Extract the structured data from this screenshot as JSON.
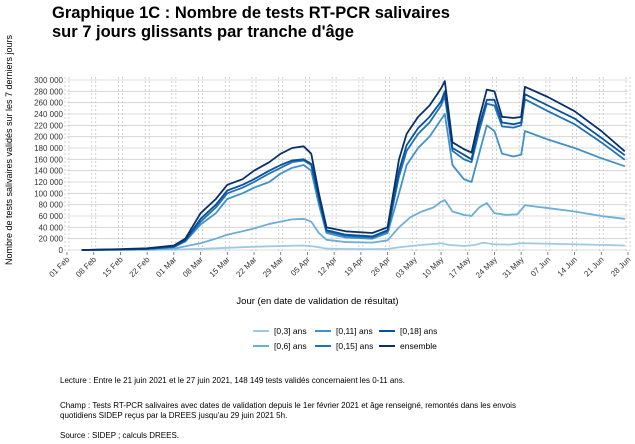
{
  "title_lines": [
    "Graphique 1C : Nombre de tests RT-PCR salivaires",
    "sur 7 jours glissants par tranche d'âge"
  ],
  "notes": {
    "lecture": "Lecture : Entre le 21 juin 2021 et le 27 juin 2021, 148 149 tests validés concernaient les 0-11 ans.",
    "champ_lines": [
      "Champ : Tests RT-PCR salivaires avec dates de validation depuis le 1er février 2021 et âge renseigné, remontés dans les envois",
      "quotidiens SIDEP reçus par la DREES jusqu'au 29 juin 2021 5h."
    ],
    "source": "Source : SIDEP ; calculs DREES."
  },
  "chart_data": {
    "type": "line",
    "title": "Graphique 1C : Nombre de tests RT-PCR salivaires sur 7 jours glissants par tranche d'âge",
    "xlabel": "Jour (en date de validation de résultat)",
    "ylabel": "Nombre de tests salivaires validés sur les 7 derniers jours",
    "x_range": [
      "2021-02-01",
      "2021-06-28"
    ],
    "ylim": [
      0,
      300000
    ],
    "y_ticks": [
      0,
      20000,
      40000,
      60000,
      80000,
      100000,
      120000,
      140000,
      160000,
      180000,
      200000,
      220000,
      240000,
      260000,
      280000,
      300000
    ],
    "y_tick_labels": [
      "0",
      "20 000",
      "40 000",
      "60 000",
      "80 000",
      "100 000",
      "120 000",
      "140 000",
      "160 000",
      "180 000",
      "200 000",
      "220 000",
      "240 000",
      "260 000",
      "280 000",
      "300 000"
    ],
    "x_tick_dates": [
      "2021-02-01",
      "2021-02-08",
      "2021-02-15",
      "2021-02-22",
      "2021-03-01",
      "2021-03-08",
      "2021-03-15",
      "2021-03-22",
      "2021-03-29",
      "2021-04-05",
      "2021-04-12",
      "2021-04-19",
      "2021-04-26",
      "2021-05-03",
      "2021-05-10",
      "2021-05-17",
      "2021-05-24",
      "2021-05-31",
      "2021-06-07",
      "2021-06-14",
      "2021-06-21",
      "2021-06-28"
    ],
    "x_tick_labels": [
      "01 Feb",
      "08 Feb",
      "15 Feb",
      "22 Feb",
      "01 Mar",
      "08 Mar",
      "15 Mar",
      "22 Mar",
      "29 Mar",
      "05 Apr",
      "12 Apr",
      "19 Apr",
      "26 Apr",
      "03 May",
      "10 May",
      "17 May",
      "24 May",
      "31 May",
      "07 Jun",
      "14 Jun",
      "21 Jun",
      "28 Jun"
    ],
    "vertical_dashed_lines": [
      "2021-02-01",
      "2021-02-08",
      "2021-02-15",
      "2021-02-22",
      "2021-03-01",
      "2021-03-08",
      "2021-03-15",
      "2021-03-22",
      "2021-03-29",
      "2021-04-05",
      "2021-04-12",
      "2021-04-19",
      "2021-04-26",
      "2021-05-03",
      "2021-05-10",
      "2021-05-17",
      "2021-05-24",
      "2021-05-31",
      "2021-06-07",
      "2021-06-14",
      "2021-06-21",
      "2021-06-28"
    ],
    "grid": "horizontal",
    "legend_position": "bottom",
    "series": [
      {
        "name": "[0,3] ans",
        "color": "#9ecae1",
        "points": [
          [
            "2021-02-05",
            0
          ],
          [
            "2021-02-15",
            200
          ],
          [
            "2021-02-22",
            300
          ],
          [
            "2021-03-01",
            800
          ],
          [
            "2021-03-05",
            1500
          ],
          [
            "2021-03-12",
            3000
          ],
          [
            "2021-03-19",
            5000
          ],
          [
            "2021-03-26",
            6500
          ],
          [
            "2021-04-01",
            7500
          ],
          [
            "2021-04-04",
            8000
          ],
          [
            "2021-04-07",
            6000
          ],
          [
            "2021-04-10",
            2500
          ],
          [
            "2021-04-15",
            1800
          ],
          [
            "2021-04-22",
            1500
          ],
          [
            "2021-04-26",
            2000
          ],
          [
            "2021-04-30",
            5500
          ],
          [
            "2021-05-05",
            9000
          ],
          [
            "2021-05-09",
            11000
          ],
          [
            "2021-05-10",
            12000
          ],
          [
            "2021-05-12",
            9000
          ],
          [
            "2021-05-16",
            7000
          ],
          [
            "2021-05-19",
            9000
          ],
          [
            "2021-05-21",
            13000
          ],
          [
            "2021-05-24",
            10000
          ],
          [
            "2021-05-28",
            9500
          ],
          [
            "2021-05-31",
            12000
          ],
          [
            "2021-06-07",
            11000
          ],
          [
            "2021-06-14",
            10000
          ],
          [
            "2021-06-21",
            9000
          ],
          [
            "2021-06-27",
            8000
          ]
        ]
      },
      {
        "name": "[0,6] ans",
        "color": "#6baed6",
        "points": [
          [
            "2021-02-05",
            0
          ],
          [
            "2021-02-15",
            300
          ],
          [
            "2021-02-22",
            800
          ],
          [
            "2021-03-01",
            2500
          ],
          [
            "2021-03-05",
            8000
          ],
          [
            "2021-03-08",
            12000
          ],
          [
            "2021-03-12",
            20000
          ],
          [
            "2021-03-15",
            27000
          ],
          [
            "2021-03-19",
            33000
          ],
          [
            "2021-03-22",
            38000
          ],
          [
            "2021-03-26",
            46000
          ],
          [
            "2021-03-29",
            50000
          ],
          [
            "2021-04-01",
            54000
          ],
          [
            "2021-04-04",
            55000
          ],
          [
            "2021-04-06",
            50000
          ],
          [
            "2021-04-08",
            30000
          ],
          [
            "2021-04-10",
            18000
          ],
          [
            "2021-04-15",
            14000
          ],
          [
            "2021-04-22",
            13000
          ],
          [
            "2021-04-26",
            17000
          ],
          [
            "2021-04-29",
            40000
          ],
          [
            "2021-05-02",
            58000
          ],
          [
            "2021-05-05",
            68000
          ],
          [
            "2021-05-08",
            75000
          ],
          [
            "2021-05-10",
            85000
          ],
          [
            "2021-05-11",
            88000
          ],
          [
            "2021-05-13",
            68000
          ],
          [
            "2021-05-16",
            62000
          ],
          [
            "2021-05-18",
            60000
          ],
          [
            "2021-05-20",
            75000
          ],
          [
            "2021-05-22",
            83000
          ],
          [
            "2021-05-24",
            65000
          ],
          [
            "2021-05-27",
            62000
          ],
          [
            "2021-05-30",
            63000
          ],
          [
            "2021-06-01",
            79000
          ],
          [
            "2021-06-07",
            74000
          ],
          [
            "2021-06-14",
            68000
          ],
          [
            "2021-06-21",
            60000
          ],
          [
            "2021-06-27",
            55000
          ]
        ]
      },
      {
        "name": "[0,11] ans",
        "color": "#4292c6",
        "points": [
          [
            "2021-02-05",
            0
          ],
          [
            "2021-02-15",
            1000
          ],
          [
            "2021-02-22",
            2000
          ],
          [
            "2021-03-01",
            5000
          ],
          [
            "2021-03-04",
            15000
          ],
          [
            "2021-03-08",
            45000
          ],
          [
            "2021-03-12",
            65000
          ],
          [
            "2021-03-15",
            90000
          ],
          [
            "2021-03-19",
            100000
          ],
          [
            "2021-03-22",
            110000
          ],
          [
            "2021-03-26",
            120000
          ],
          [
            "2021-03-29",
            135000
          ],
          [
            "2021-04-01",
            145000
          ],
          [
            "2021-04-04",
            150000
          ],
          [
            "2021-04-06",
            140000
          ],
          [
            "2021-04-08",
            80000
          ],
          [
            "2021-04-10",
            30000
          ],
          [
            "2021-04-15",
            22000
          ],
          [
            "2021-04-22",
            20000
          ],
          [
            "2021-04-26",
            30000
          ],
          [
            "2021-04-29",
            100000
          ],
          [
            "2021-05-01",
            150000
          ],
          [
            "2021-05-04",
            180000
          ],
          [
            "2021-05-07",
            200000
          ],
          [
            "2021-05-10",
            230000
          ],
          [
            "2021-05-11",
            240000
          ],
          [
            "2021-05-13",
            150000
          ],
          [
            "2021-05-16",
            125000
          ],
          [
            "2021-05-18",
            120000
          ],
          [
            "2021-05-20",
            170000
          ],
          [
            "2021-05-22",
            220000
          ],
          [
            "2021-05-24",
            210000
          ],
          [
            "2021-05-26",
            170000
          ],
          [
            "2021-05-29",
            165000
          ],
          [
            "2021-05-31",
            168000
          ],
          [
            "2021-06-01",
            210000
          ],
          [
            "2021-06-07",
            195000
          ],
          [
            "2021-06-14",
            180000
          ],
          [
            "2021-06-21",
            162000
          ],
          [
            "2021-06-27",
            148149
          ]
        ]
      },
      {
        "name": "[0,15] ans",
        "color": "#2171b5",
        "points": [
          [
            "2021-02-05",
            0
          ],
          [
            "2021-02-15",
            1000
          ],
          [
            "2021-02-22",
            2000
          ],
          [
            "2021-03-01",
            5500
          ],
          [
            "2021-03-04",
            16000
          ],
          [
            "2021-03-08",
            50000
          ],
          [
            "2021-03-12",
            75000
          ],
          [
            "2021-03-15",
            100000
          ],
          [
            "2021-03-19",
            110000
          ],
          [
            "2021-03-22",
            120000
          ],
          [
            "2021-03-26",
            135000
          ],
          [
            "2021-03-29",
            145000
          ],
          [
            "2021-04-01",
            155000
          ],
          [
            "2021-04-04",
            158000
          ],
          [
            "2021-04-06",
            150000
          ],
          [
            "2021-04-08",
            90000
          ],
          [
            "2021-04-10",
            33000
          ],
          [
            "2021-04-15",
            25000
          ],
          [
            "2021-04-22",
            22000
          ],
          [
            "2021-04-26",
            33000
          ],
          [
            "2021-04-29",
            130000
          ],
          [
            "2021-05-01",
            175000
          ],
          [
            "2021-05-04",
            205000
          ],
          [
            "2021-05-07",
            225000
          ],
          [
            "2021-05-10",
            255000
          ],
          [
            "2021-05-11",
            272000
          ],
          [
            "2021-05-13",
            175000
          ],
          [
            "2021-05-16",
            160000
          ],
          [
            "2021-05-18",
            155000
          ],
          [
            "2021-05-20",
            210000
          ],
          [
            "2021-05-22",
            258000
          ],
          [
            "2021-05-24",
            255000
          ],
          [
            "2021-05-26",
            218000
          ],
          [
            "2021-05-29",
            216000
          ],
          [
            "2021-05-31",
            220000
          ],
          [
            "2021-06-01",
            266000
          ],
          [
            "2021-06-07",
            245000
          ],
          [
            "2021-06-14",
            222000
          ],
          [
            "2021-06-21",
            190000
          ],
          [
            "2021-06-27",
            160000
          ]
        ]
      },
      {
        "name": "[0,18] ans",
        "color": "#08519c",
        "points": [
          [
            "2021-02-05",
            0
          ],
          [
            "2021-02-15",
            1000
          ],
          [
            "2021-02-22",
            2000
          ],
          [
            "2021-03-01",
            6000
          ],
          [
            "2021-03-04",
            17000
          ],
          [
            "2021-03-08",
            55000
          ],
          [
            "2021-03-12",
            80000
          ],
          [
            "2021-03-15",
            105000
          ],
          [
            "2021-03-19",
            115000
          ],
          [
            "2021-03-22",
            125000
          ],
          [
            "2021-03-26",
            140000
          ],
          [
            "2021-03-29",
            150000
          ],
          [
            "2021-04-01",
            158000
          ],
          [
            "2021-04-04",
            160000
          ],
          [
            "2021-04-06",
            152000
          ],
          [
            "2021-04-08",
            92000
          ],
          [
            "2021-04-10",
            35000
          ],
          [
            "2021-04-15",
            27000
          ],
          [
            "2021-04-22",
            24000
          ],
          [
            "2021-04-26",
            35000
          ],
          [
            "2021-04-29",
            140000
          ],
          [
            "2021-05-01",
            185000
          ],
          [
            "2021-05-04",
            215000
          ],
          [
            "2021-05-07",
            235000
          ],
          [
            "2021-05-10",
            262000
          ],
          [
            "2021-05-11",
            280000
          ],
          [
            "2021-05-13",
            180000
          ],
          [
            "2021-05-16",
            168000
          ],
          [
            "2021-05-18",
            160000
          ],
          [
            "2021-05-20",
            220000
          ],
          [
            "2021-05-22",
            265000
          ],
          [
            "2021-05-24",
            265000
          ],
          [
            "2021-05-26",
            225000
          ],
          [
            "2021-05-29",
            222000
          ],
          [
            "2021-05-31",
            225000
          ],
          [
            "2021-06-01",
            275000
          ],
          [
            "2021-06-07",
            255000
          ],
          [
            "2021-06-14",
            232000
          ],
          [
            "2021-06-21",
            198000
          ],
          [
            "2021-06-27",
            168000
          ]
        ]
      },
      {
        "name": "ensemble",
        "color": "#08306b",
        "points": [
          [
            "2021-02-05",
            0
          ],
          [
            "2021-02-15",
            1500
          ],
          [
            "2021-02-22",
            3000
          ],
          [
            "2021-03-01",
            8000
          ],
          [
            "2021-03-04",
            20000
          ],
          [
            "2021-03-08",
            65000
          ],
          [
            "2021-03-12",
            90000
          ],
          [
            "2021-03-15",
            115000
          ],
          [
            "2021-03-19",
            125000
          ],
          [
            "2021-03-22",
            140000
          ],
          [
            "2021-03-26",
            155000
          ],
          [
            "2021-03-29",
            170000
          ],
          [
            "2021-04-01",
            180000
          ],
          [
            "2021-04-04",
            183000
          ],
          [
            "2021-04-06",
            170000
          ],
          [
            "2021-04-08",
            100000
          ],
          [
            "2021-04-10",
            40000
          ],
          [
            "2021-04-15",
            33000
          ],
          [
            "2021-04-22",
            30000
          ],
          [
            "2021-04-26",
            40000
          ],
          [
            "2021-04-29",
            160000
          ],
          [
            "2021-05-01",
            205000
          ],
          [
            "2021-05-04",
            235000
          ],
          [
            "2021-05-07",
            255000
          ],
          [
            "2021-05-10",
            285000
          ],
          [
            "2021-05-11",
            298000
          ],
          [
            "2021-05-13",
            190000
          ],
          [
            "2021-05-16",
            178000
          ],
          [
            "2021-05-18",
            172000
          ],
          [
            "2021-05-20",
            232000
          ],
          [
            "2021-05-22",
            283000
          ],
          [
            "2021-05-24",
            280000
          ],
          [
            "2021-05-26",
            235000
          ],
          [
            "2021-05-29",
            233000
          ],
          [
            "2021-05-31",
            235000
          ],
          [
            "2021-06-01",
            288000
          ],
          [
            "2021-06-07",
            270000
          ],
          [
            "2021-06-14",
            245000
          ],
          [
            "2021-06-21",
            210000
          ],
          [
            "2021-06-27",
            175000
          ]
        ]
      }
    ]
  }
}
